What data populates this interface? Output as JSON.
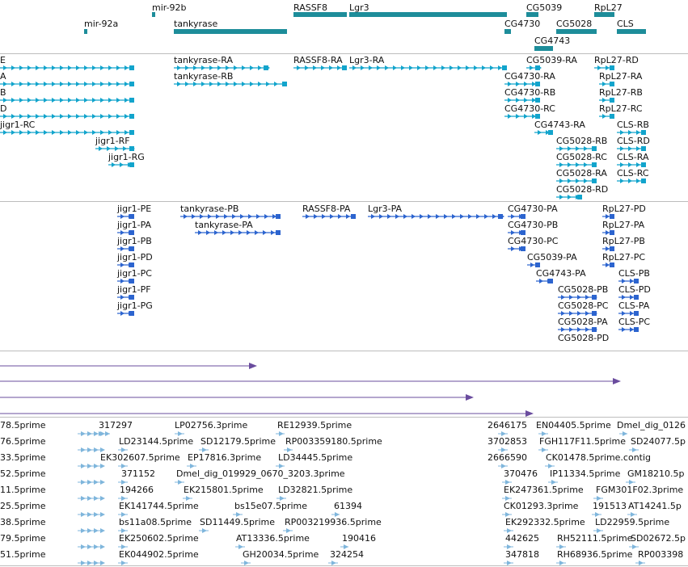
{
  "colors": {
    "gene": "#1d8d9a",
    "transcript": "#12a4cc",
    "protein": "#2c64cf",
    "alignment": "#6a4c9e",
    "est": "#7fb6dc",
    "separator": "#bdbdbd"
  },
  "tracks": [
    {
      "name": "genes",
      "features": [
        {
          "label": "mir-92b"
        },
        {
          "label": "RASSF8"
        },
        {
          "label": "Lgr3"
        },
        {
          "label": "CG5039"
        },
        {
          "label": "RpL27"
        },
        {
          "label": "mir-92a"
        },
        {
          "label": "tankyrase"
        },
        {
          "label": "CG4730"
        },
        {
          "label": "CG5028"
        },
        {
          "label": "CLS"
        },
        {
          "label": "CG4743"
        }
      ]
    },
    {
      "name": "transcripts",
      "features": [
        {
          "label": "E"
        },
        {
          "label": "A"
        },
        {
          "label": "B"
        },
        {
          "label": "D"
        },
        {
          "label": "jigr1-RC"
        },
        {
          "label": "tankyrase-RA"
        },
        {
          "label": "tankyrase-RB"
        },
        {
          "label": "RASSF8-RA"
        },
        {
          "label": "Lgr3-RA"
        },
        {
          "label": "CG5039-RA"
        },
        {
          "label": "RpL27-RD"
        },
        {
          "label": "CG4730-RA"
        },
        {
          "label": "RpL27-RA"
        },
        {
          "label": "CG4730-RB"
        },
        {
          "label": "RpL27-RB"
        },
        {
          "label": "CG4730-RC"
        },
        {
          "label": "RpL27-RC"
        },
        {
          "label": "CG4743-RA"
        },
        {
          "label": "CLS-RB"
        },
        {
          "label": "jigr1-RF"
        },
        {
          "label": "jigr1-RG"
        },
        {
          "label": "CG5028-RB"
        },
        {
          "label": "CLS-RD"
        },
        {
          "label": "CG5028-RC"
        },
        {
          "label": "CLS-RA"
        },
        {
          "label": "CG5028-RA"
        },
        {
          "label": "CLS-RC"
        },
        {
          "label": "CG5028-RD"
        }
      ]
    },
    {
      "name": "proteins",
      "features": [
        {
          "label": "jigr1-PE"
        },
        {
          "label": "tankyrase-PB"
        },
        {
          "label": "RASSF8-PA"
        },
        {
          "label": "Lgr3-PA"
        },
        {
          "label": "CG4730-PA"
        },
        {
          "label": "RpL27-PD"
        },
        {
          "label": "jigr1-PA"
        },
        {
          "label": "tankyrase-PA"
        },
        {
          "label": "CG4730-PB"
        },
        {
          "label": "RpL27-PA"
        },
        {
          "label": "jigr1-PB"
        },
        {
          "label": "CG4730-PC"
        },
        {
          "label": "RpL27-PB"
        },
        {
          "label": "jigr1-PD"
        },
        {
          "label": "CG5039-PA"
        },
        {
          "label": "RpL27-PC"
        },
        {
          "label": "jigr1-PC"
        },
        {
          "label": "CG4743-PA"
        },
        {
          "label": "CLS-PB"
        },
        {
          "label": "jigr1-PF"
        },
        {
          "label": "CG5028-PB"
        },
        {
          "label": "CLS-PD"
        },
        {
          "label": "jigr1-PG"
        },
        {
          "label": "CG5028-PC"
        },
        {
          "label": "CLS-PA"
        },
        {
          "label": "CG5028-PA"
        },
        {
          "label": "CLS-PC"
        },
        {
          "label": "CG5028-PD"
        }
      ]
    },
    {
      "name": "alignments",
      "features": [
        {
          "label": ""
        },
        {
          "label": ""
        },
        {
          "label": ""
        },
        {
          "label": ""
        }
      ]
    },
    {
      "name": "ests",
      "features": [
        {
          "label": "78.5prime"
        },
        {
          "label": "317297"
        },
        {
          "label": "LP02756.3prime"
        },
        {
          "label": "RE12939.5prime"
        },
        {
          "label": "2646175"
        },
        {
          "label": "EN04405.5prime"
        },
        {
          "label": "Dmel_dig_0126"
        },
        {
          "label": "76.5prime"
        },
        {
          "label": "LD23144.5prime"
        },
        {
          "label": "SD12179.5prime"
        },
        {
          "label": "RP003359180.5prime"
        },
        {
          "label": "3702853"
        },
        {
          "label": "FGH117F11.5prime"
        },
        {
          "label": "SD24077.5p"
        },
        {
          "label": "33.5prime"
        },
        {
          "label": "EK302607.5prime"
        },
        {
          "label": "EP17816.3prime"
        },
        {
          "label": "LD34445.5prime"
        },
        {
          "label": "2666590"
        },
        {
          "label": "CK01478.5prime.contig"
        },
        {
          "label": "52.5prime"
        },
        {
          "label": "371152"
        },
        {
          "label": "Dmel_dig_019929_0670_3203.3prime"
        },
        {
          "label": "370476"
        },
        {
          "label": "IP11334.5prime"
        },
        {
          "label": "GM18210.5p"
        },
        {
          "label": "11.5prime"
        },
        {
          "label": "194266"
        },
        {
          "label": "EK215801.5prime"
        },
        {
          "label": "LD32821.5prime"
        },
        {
          "label": "EK247361.5prime"
        },
        {
          "label": "FGM301F02.3prime"
        },
        {
          "label": "25.5prime"
        },
        {
          "label": "EK141744.5prime"
        },
        {
          "label": "bs15e07.5prime"
        },
        {
          "label": "61394"
        },
        {
          "label": "CK01293.3prime"
        },
        {
          "label": "191513"
        },
        {
          "label": "AT14241.5p"
        },
        {
          "label": "38.5prime"
        },
        {
          "label": "bs11a08.5prime"
        },
        {
          "label": "SD11449.5prime"
        },
        {
          "label": "RP003219936.5prime"
        },
        {
          "label": "EK292332.5prime"
        },
        {
          "label": "LD22959.5prime"
        },
        {
          "label": "79.5prime"
        },
        {
          "label": "EK250602.5prime"
        },
        {
          "label": "AT13336.5prime"
        },
        {
          "label": "190416"
        },
        {
          "label": "442625"
        },
        {
          "label": "RH52111.5prime"
        },
        {
          "label": "SD02672.5p"
        },
        {
          "label": "51.5prime"
        },
        {
          "label": "EK044902.5prime"
        },
        {
          "label": "GH20034.5prime"
        },
        {
          "label": "324254"
        },
        {
          "label": "347818"
        },
        {
          "label": "RH68936.5prime"
        },
        {
          "label": "RP003398"
        }
      ]
    }
  ]
}
